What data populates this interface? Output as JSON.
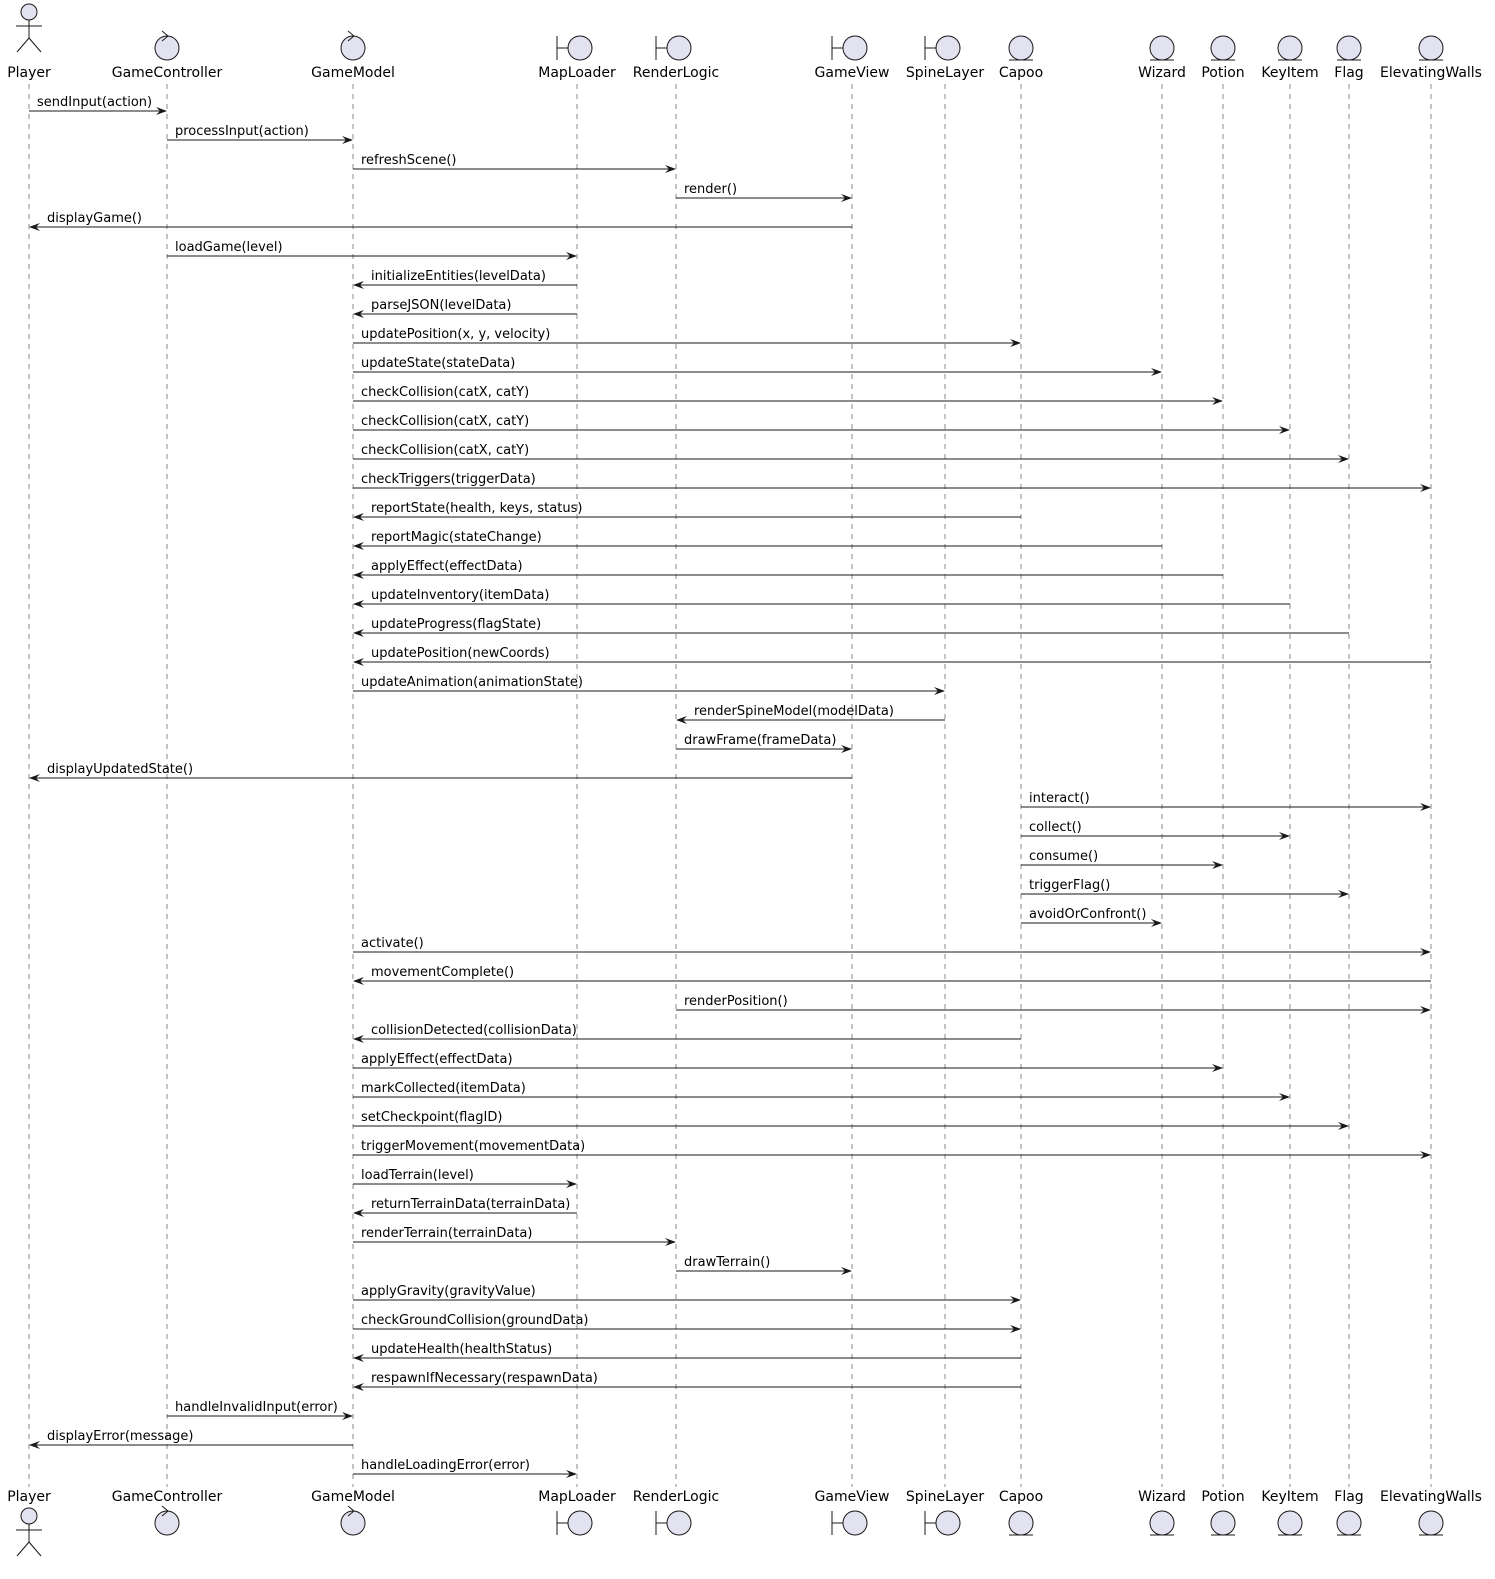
{
  "participants": [
    {
      "name": "Player",
      "kind": "actor"
    },
    {
      "name": "GameController",
      "kind": "control"
    },
    {
      "name": "GameModel",
      "kind": "control"
    },
    {
      "name": "MapLoader",
      "kind": "boundary"
    },
    {
      "name": "RenderLogic",
      "kind": "boundary"
    },
    {
      "name": "GameView",
      "kind": "boundary"
    },
    {
      "name": "SpineLayer",
      "kind": "boundary"
    },
    {
      "name": "Capoo",
      "kind": "entity"
    },
    {
      "name": "Wizard",
      "kind": "entity"
    },
    {
      "name": "Potion",
      "kind": "entity"
    },
    {
      "name": "KeyItem",
      "kind": "entity"
    },
    {
      "name": "Flag",
      "kind": "entity"
    },
    {
      "name": "ElevatingWalls",
      "kind": "entity"
    }
  ],
  "messages": [
    {
      "from": "Player",
      "to": "GameController",
      "label": "sendInput(action)"
    },
    {
      "from": "GameController",
      "to": "GameModel",
      "label": "processInput(action)"
    },
    {
      "from": "GameModel",
      "to": "RenderLogic",
      "label": "refreshScene()"
    },
    {
      "from": "RenderLogic",
      "to": "GameView",
      "label": "render()"
    },
    {
      "from": "GameView",
      "to": "Player",
      "label": "displayGame()"
    },
    {
      "from": "GameController",
      "to": "MapLoader",
      "label": "loadGame(level)"
    },
    {
      "from": "MapLoader",
      "to": "GameModel",
      "label": "initializeEntities(levelData)"
    },
    {
      "from": "MapLoader",
      "to": "GameModel",
      "label": "parseJSON(levelData)"
    },
    {
      "from": "GameModel",
      "to": "Capoo",
      "label": "updatePosition(x, y, velocity)"
    },
    {
      "from": "GameModel",
      "to": "Wizard",
      "label": "updateState(stateData)"
    },
    {
      "from": "GameModel",
      "to": "Potion",
      "label": "checkCollision(catX, catY)"
    },
    {
      "from": "GameModel",
      "to": "KeyItem",
      "label": "checkCollision(catX, catY)"
    },
    {
      "from": "GameModel",
      "to": "Flag",
      "label": "checkCollision(catX, catY)"
    },
    {
      "from": "GameModel",
      "to": "ElevatingWalls",
      "label": "checkTriggers(triggerData)"
    },
    {
      "from": "Capoo",
      "to": "GameModel",
      "label": "reportState(health, keys, status)"
    },
    {
      "from": "Wizard",
      "to": "GameModel",
      "label": "reportMagic(stateChange)"
    },
    {
      "from": "Potion",
      "to": "GameModel",
      "label": "applyEffect(effectData)"
    },
    {
      "from": "KeyItem",
      "to": "GameModel",
      "label": "updateInventory(itemData)"
    },
    {
      "from": "Flag",
      "to": "GameModel",
      "label": "updateProgress(flagState)"
    },
    {
      "from": "ElevatingWalls",
      "to": "GameModel",
      "label": "updatePosition(newCoords)"
    },
    {
      "from": "GameModel",
      "to": "SpineLayer",
      "label": "updateAnimation(animationState)"
    },
    {
      "from": "SpineLayer",
      "to": "RenderLogic",
      "label": "renderSpineModel(modelData)"
    },
    {
      "from": "RenderLogic",
      "to": "GameView",
      "label": "drawFrame(frameData)"
    },
    {
      "from": "GameView",
      "to": "Player",
      "label": "displayUpdatedState()"
    },
    {
      "from": "Capoo",
      "to": "ElevatingWalls",
      "label": "interact()"
    },
    {
      "from": "Capoo",
      "to": "KeyItem",
      "label": "collect()"
    },
    {
      "from": "Capoo",
      "to": "Potion",
      "label": "consume()"
    },
    {
      "from": "Capoo",
      "to": "Flag",
      "label": "triggerFlag()"
    },
    {
      "from": "Capoo",
      "to": "Wizard",
      "label": "avoidOrConfront()"
    },
    {
      "from": "GameModel",
      "to": "ElevatingWalls",
      "label": "activate()"
    },
    {
      "from": "ElevatingWalls",
      "to": "GameModel",
      "label": "movementComplete()"
    },
    {
      "from": "RenderLogic",
      "to": "ElevatingWalls",
      "label": "renderPosition()"
    },
    {
      "from": "Capoo",
      "to": "GameModel",
      "label": "collisionDetected(collisionData)"
    },
    {
      "from": "GameModel",
      "to": "Potion",
      "label": "applyEffect(effectData)"
    },
    {
      "from": "GameModel",
      "to": "KeyItem",
      "label": "markCollected(itemData)"
    },
    {
      "from": "GameModel",
      "to": "Flag",
      "label": "setCheckpoint(flagID)"
    },
    {
      "from": "GameModel",
      "to": "ElevatingWalls",
      "label": "triggerMovement(movementData)"
    },
    {
      "from": "GameModel",
      "to": "MapLoader",
      "label": "loadTerrain(level)"
    },
    {
      "from": "MapLoader",
      "to": "GameModel",
      "label": "returnTerrainData(terrainData)"
    },
    {
      "from": "GameModel",
      "to": "RenderLogic",
      "label": "renderTerrain(terrainData)"
    },
    {
      "from": "RenderLogic",
      "to": "GameView",
      "label": "drawTerrain()"
    },
    {
      "from": "GameModel",
      "to": "Capoo",
      "label": "applyGravity(gravityValue)"
    },
    {
      "from": "GameModel",
      "to": "Capoo",
      "label": "checkGroundCollision(groundData)"
    },
    {
      "from": "Capoo",
      "to": "GameModel",
      "label": "updateHealth(healthStatus)"
    },
    {
      "from": "Capoo",
      "to": "GameModel",
      "label": "respawnIfNecessary(respawnData)"
    },
    {
      "from": "GameController",
      "to": "GameModel",
      "label": "handleInvalidInput(error)"
    },
    {
      "from": "GameModel",
      "to": "Player",
      "label": "displayError(message)"
    },
    {
      "from": "GameModel",
      "to": "MapLoader",
      "label": "handleLoadingError(error)"
    }
  ]
}
